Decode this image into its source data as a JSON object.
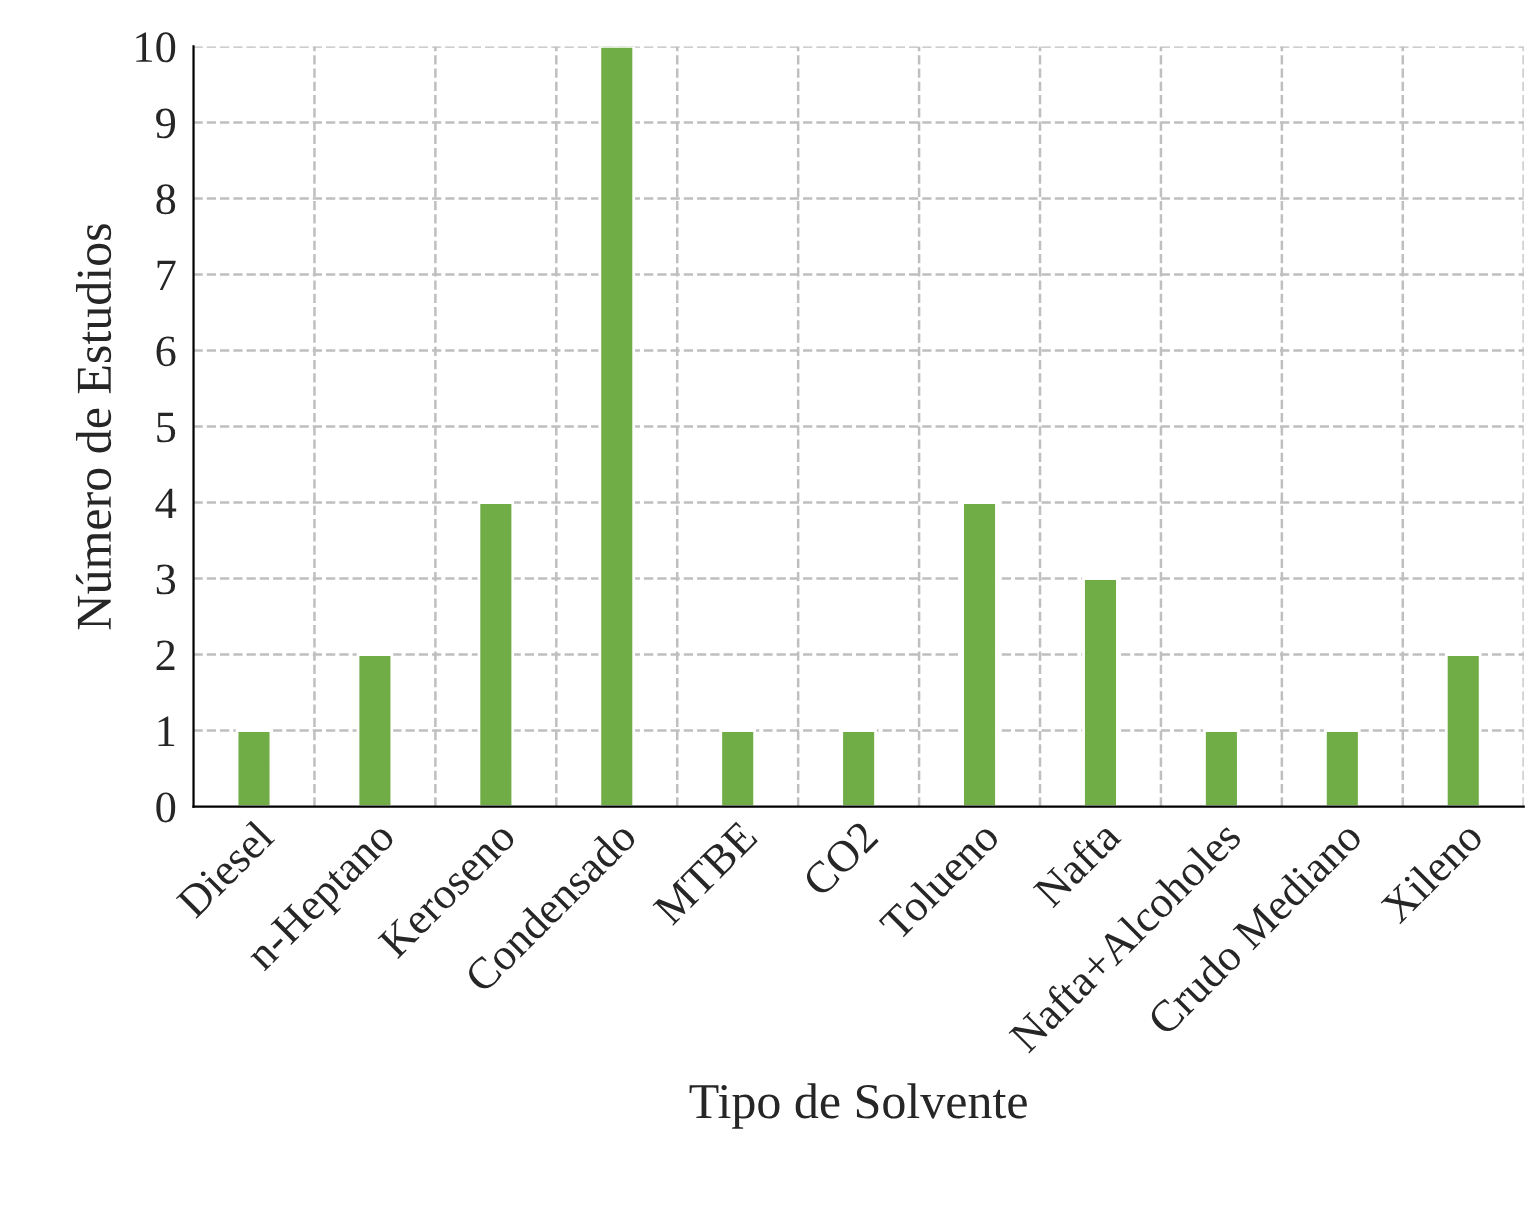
{
  "chart_data": {
    "type": "bar",
    "xlabel": "Tipo de Solvente",
    "ylabel": "Número de Estudios",
    "categories": [
      "Diesel",
      "n-Heptano",
      "Keroseno",
      "Condensado",
      "MTBE",
      "CO2",
      "Tolueno",
      "Nafta",
      "Nafta+Alcoholes",
      "Crudo Mediano",
      "Xileno"
    ],
    "values": [
      1,
      2,
      4,
      10,
      1,
      1,
      4,
      3,
      1,
      1,
      2
    ],
    "color": "#70ad47",
    "ylim": [
      0,
      10
    ],
    "yticks": [
      0,
      1,
      2,
      3,
      4,
      5,
      6,
      7,
      8,
      9,
      10
    ],
    "grid": true
  }
}
